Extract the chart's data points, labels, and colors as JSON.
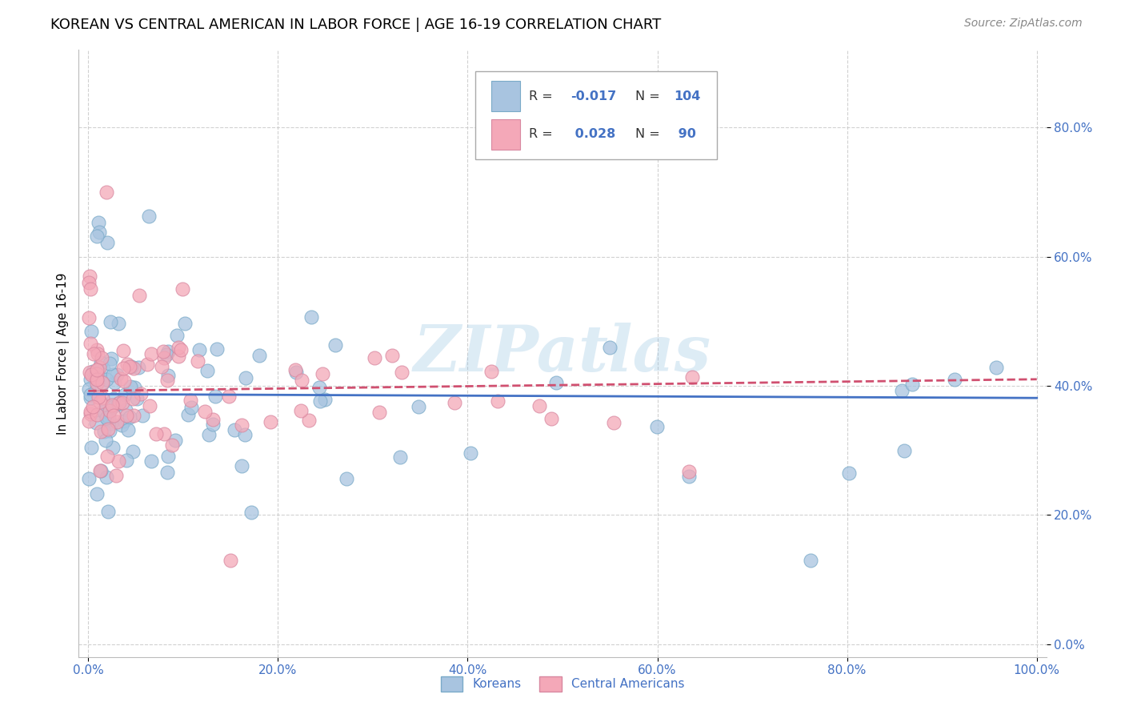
{
  "title": "KOREAN VS CENTRAL AMERICAN IN LABOR FORCE | AGE 16-19 CORRELATION CHART",
  "source": "Source: ZipAtlas.com",
  "ylabel": "In Labor Force | Age 16-19",
  "xlim": [
    -0.01,
    1.01
  ],
  "ylim": [
    -0.02,
    0.92
  ],
  "xtick_vals": [
    0.0,
    0.2,
    0.4,
    0.6,
    0.8,
    1.0
  ],
  "ytick_vals": [
    0.0,
    0.2,
    0.4,
    0.6,
    0.8
  ],
  "xticklabels": [
    "0.0%",
    "20.0%",
    "40.0%",
    "60.0%",
    "80.0%",
    "100.0%"
  ],
  "yticklabels": [
    "0.0%",
    "20.0%",
    "40.0%",
    "60.0%",
    "80.0%"
  ],
  "korean_color": "#a8c4e0",
  "korean_edge_color": "#7aaac8",
  "ca_color": "#f4a8b8",
  "ca_edge_color": "#d888a0",
  "trend_korean_color": "#4472c4",
  "trend_ca_color": "#d05070",
  "legend_R_korean": "-0.017",
  "legend_N_korean": "104",
  "legend_R_ca": "0.028",
  "legend_N_ca": "90",
  "watermark": "ZIPatlas",
  "background_color": "#ffffff",
  "grid_color": "#cccccc",
  "tick_label_color": "#4472c4",
  "title_color": "#000000",
  "source_color": "#888888",
  "ylabel_color": "#000000"
}
